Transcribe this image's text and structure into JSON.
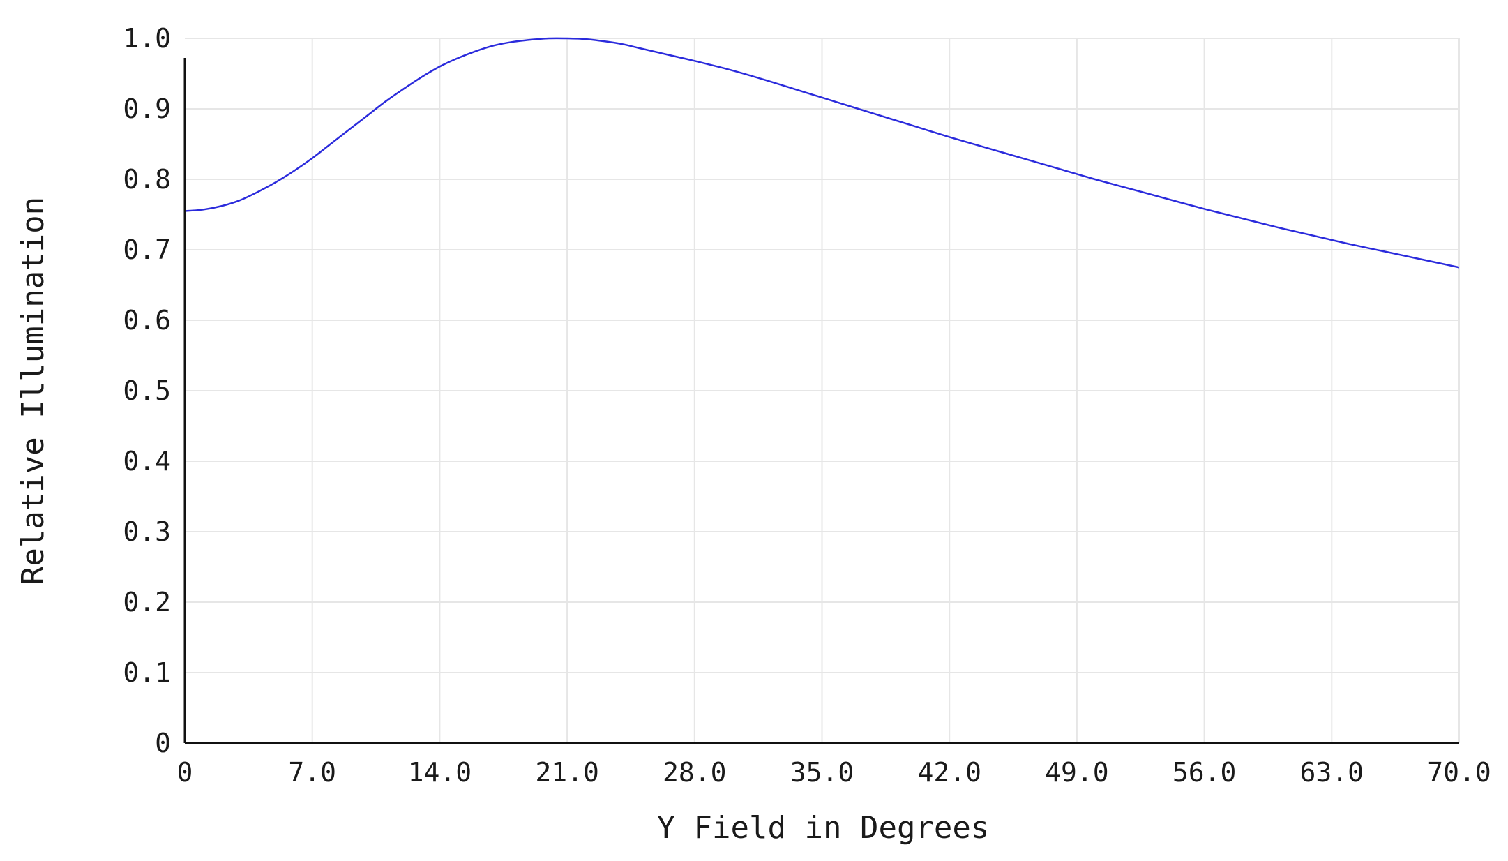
{
  "chart_data": {
    "type": "line",
    "title": "",
    "xlabel": "Y Field in Degrees",
    "ylabel": "Relative Illumination",
    "xlim": [
      0,
      70
    ],
    "ylim": [
      0,
      1
    ],
    "x_ticks": [
      0,
      7,
      14,
      21,
      28,
      35,
      42,
      49,
      56,
      63,
      70
    ],
    "x_tick_labels": [
      "0",
      "7.0",
      "14.0",
      "21.0",
      "28.0",
      "35.0",
      "42.0",
      "49.0",
      "56.0",
      "63.0",
      "70.0"
    ],
    "y_ticks": [
      0,
      0.1,
      0.2,
      0.3,
      0.4,
      0.5,
      0.6,
      0.7,
      0.8,
      0.9,
      1.0
    ],
    "y_tick_labels": [
      "0",
      "0.1",
      "0.2",
      "0.3",
      "0.4",
      "0.5",
      "0.6",
      "0.7",
      "0.8",
      "0.9",
      "1.0"
    ],
    "grid": true,
    "legend": "none",
    "series": [
      {
        "color": "#2b2bdc",
        "x": [
          0,
          1,
          2,
          3,
          4,
          5,
          6,
          7,
          8,
          9,
          10,
          11,
          12,
          13,
          14,
          15,
          16,
          17,
          18,
          19,
          20,
          21,
          22,
          23,
          24,
          25,
          26,
          27,
          28,
          30,
          32,
          34,
          36,
          38,
          40,
          42,
          44,
          46,
          48,
          50,
          52,
          54,
          56,
          58,
          60,
          62,
          64,
          66,
          68,
          70
        ],
        "y": [
          0.755,
          0.757,
          0.762,
          0.77,
          0.782,
          0.796,
          0.812,
          0.83,
          0.85,
          0.87,
          0.89,
          0.91,
          0.928,
          0.945,
          0.96,
          0.972,
          0.982,
          0.99,
          0.995,
          0.998,
          1.0,
          1.0,
          0.999,
          0.996,
          0.992,
          0.986,
          0.98,
          0.974,
          0.968,
          0.955,
          0.94,
          0.924,
          0.908,
          0.892,
          0.876,
          0.86,
          0.845,
          0.83,
          0.815,
          0.8,
          0.786,
          0.772,
          0.758,
          0.745,
          0.732,
          0.72,
          0.708,
          0.697,
          0.686,
          0.675
        ]
      }
    ]
  }
}
